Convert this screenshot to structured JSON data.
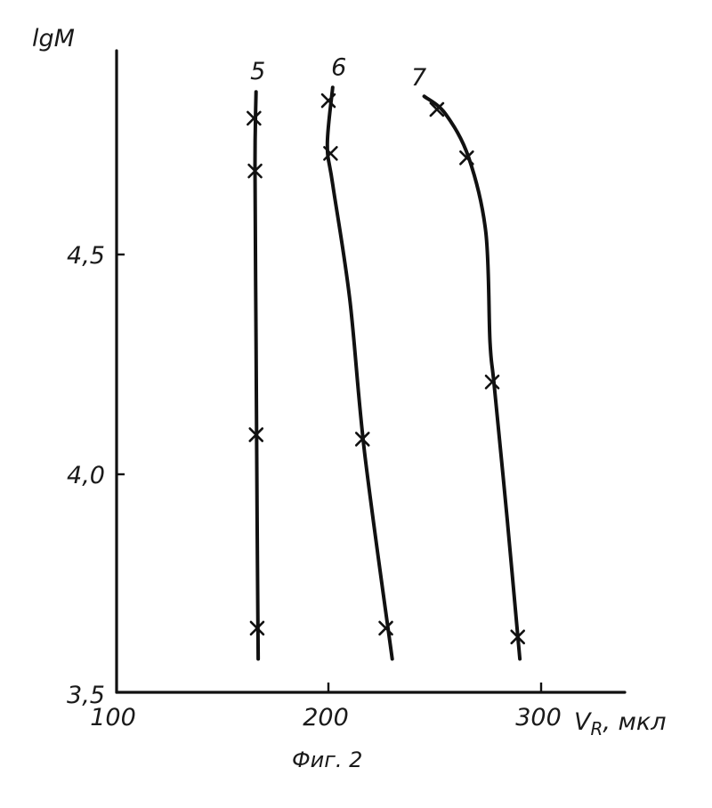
{
  "chart_data": {
    "type": "line",
    "ylabel": "lgM",
    "xlabel": "V",
    "xlabel_subscript": "R",
    "xlabel_unit": ", мкл",
    "caption": "Фиг. 2",
    "xlim": [
      100,
      340
    ],
    "ylim": [
      3.5,
      4.95
    ],
    "x_ticks": [
      {
        "value": 100,
        "label": "100"
      },
      {
        "value": 200,
        "label": "200"
      },
      {
        "value": 300,
        "label": "300"
      }
    ],
    "y_ticks": [
      {
        "value": 3.5,
        "label": "3,5"
      },
      {
        "value": 4.0,
        "label": "4,0"
      },
      {
        "value": 4.5,
        "label": "4,5"
      }
    ],
    "grid": false,
    "legend": "none",
    "series": [
      {
        "name": "5",
        "curve": [
          [
            166,
            4.87
          ],
          [
            165.5,
            4.7
          ],
          [
            166,
            4.3
          ],
          [
            166.5,
            3.9
          ],
          [
            167,
            3.58
          ]
        ],
        "points": [
          [
            165,
            4.81
          ],
          [
            165.5,
            4.69
          ],
          [
            166,
            4.09
          ],
          [
            166.5,
            3.65
          ]
        ]
      },
      {
        "name": "6",
        "curve": [
          [
            202,
            4.88
          ],
          [
            199.5,
            4.75
          ],
          [
            202,
            4.66
          ],
          [
            210,
            4.4
          ],
          [
            217,
            4.05
          ],
          [
            230,
            3.58
          ]
        ],
        "points": [
          [
            200,
            4.85
          ],
          [
            201,
            4.73
          ],
          [
            216,
            4.08
          ],
          [
            227,
            3.65
          ]
        ]
      },
      {
        "name": "7",
        "curve": [
          [
            245,
            4.86
          ],
          [
            255,
            4.82
          ],
          [
            266,
            4.72
          ],
          [
            274,
            4.55
          ],
          [
            276,
            4.3
          ],
          [
            278,
            4.2
          ],
          [
            284,
            3.9
          ],
          [
            290,
            3.58
          ]
        ],
        "points": [
          [
            251,
            4.83
          ],
          [
            265,
            4.72
          ],
          [
            277,
            4.21
          ],
          [
            289,
            3.63
          ]
        ]
      }
    ]
  }
}
